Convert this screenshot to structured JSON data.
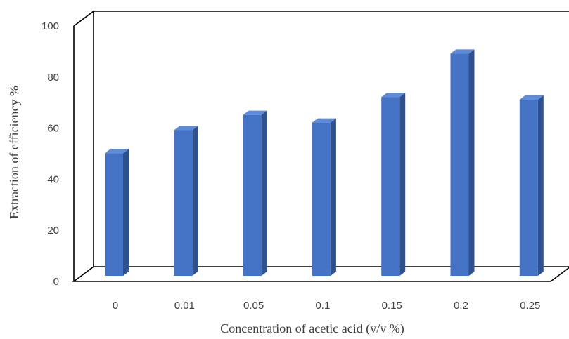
{
  "chart_data": {
    "type": "bar",
    "style": "3d-column",
    "categories": [
      "0",
      "0.01",
      "0.05",
      "0.1",
      "0.15",
      "0.2",
      "0.25"
    ],
    "values": [
      48,
      57,
      63,
      60,
      70,
      87,
      69
    ],
    "xlabel": "Concentration of acetic acid (v/v %)",
    "ylabel": "Extraction of efficiency %",
    "ylim": [
      0,
      100
    ],
    "yticks": [
      "0",
      "20",
      "40",
      "60",
      "80",
      "100"
    ],
    "grid": false,
    "legend": "none",
    "colors": {
      "bar_front": "#4472c4",
      "bar_side": "#2f528f",
      "bar_top": "#5b8bd9",
      "frame": "#000000",
      "text": "#404040"
    }
  }
}
